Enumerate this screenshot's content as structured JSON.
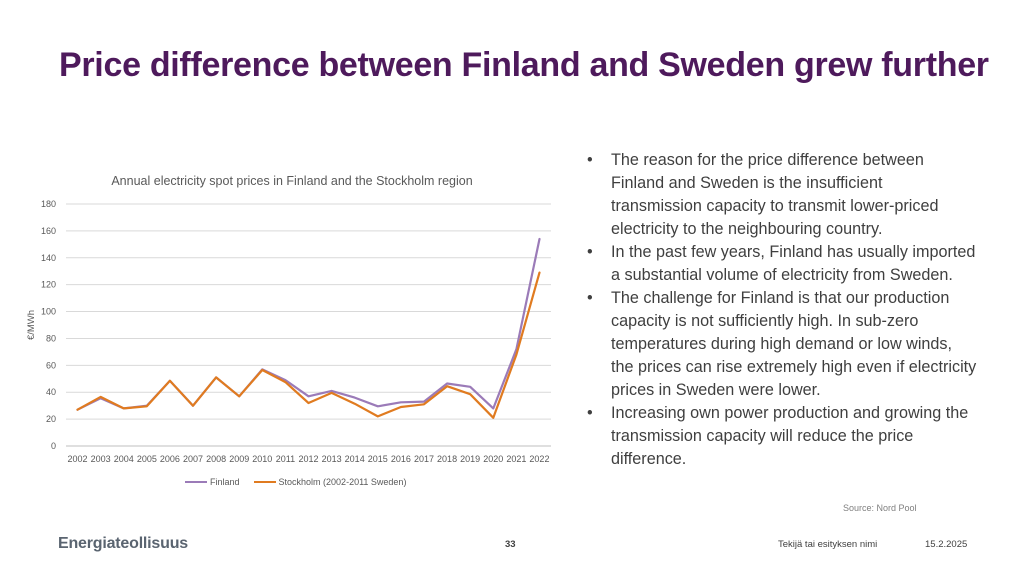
{
  "slide": {
    "title": "Price difference between Finland and Sweden grew further",
    "bullets": [
      "The reason for the price difference between Finland and Sweden is the insufficient transmission capacity to transmit lower-priced electricity to the neighbouring country.",
      "In the past few years, Finland has usually imported a substantial volume of electricity from Sweden.",
      "The challenge for Finland is that our production capacity is not sufficiently high. In sub-zero temperatures during high demand or low winds, the prices can rise extremely high even if electricity prices in Sweden were lower.",
      "Increasing own power production and growing the transmission capacity will reduce the price difference."
    ],
    "bullet_glyph": "•",
    "source": "Source: Nord Pool",
    "logo": "Energiateollisuus",
    "page_number": "33",
    "footer_author": "Tekijä tai esityksen nimi",
    "footer_date": "15.2.2025"
  },
  "chart_data": {
    "type": "line",
    "title": "Annual electricity spot prices in Finland and the Stockholm region",
    "xlabel": "",
    "ylabel": "€/MWh",
    "ylim": [
      0,
      180
    ],
    "yticks": [
      0,
      20,
      40,
      60,
      80,
      100,
      120,
      140,
      160,
      180
    ],
    "grid": true,
    "legend_position": "bottom",
    "categories": [
      "2002",
      "2003",
      "2004",
      "2005",
      "2006",
      "2007",
      "2008",
      "2009",
      "2010",
      "2011",
      "2012",
      "2013",
      "2014",
      "2015",
      "2016",
      "2017",
      "2018",
      "2019",
      "2020",
      "2021",
      "2022"
    ],
    "series": [
      {
        "name": "Finland",
        "color": "#9b7bb8",
        "values": [
          27,
          35.5,
          28,
          30,
          48.5,
          30,
          51,
          37,
          57,
          49,
          37,
          41,
          36,
          29.5,
          32.5,
          33,
          46.5,
          44,
          28,
          72,
          154
        ]
      },
      {
        "name": "Stockholm (2002-2011 Sweden)",
        "color": "#e07b20",
        "values": [
          27,
          36.5,
          28,
          29.5,
          48.5,
          30,
          51,
          37,
          56.5,
          47.5,
          32,
          39.5,
          31.5,
          22,
          29,
          31,
          44.5,
          38.5,
          21,
          68,
          129
        ]
      }
    ]
  }
}
